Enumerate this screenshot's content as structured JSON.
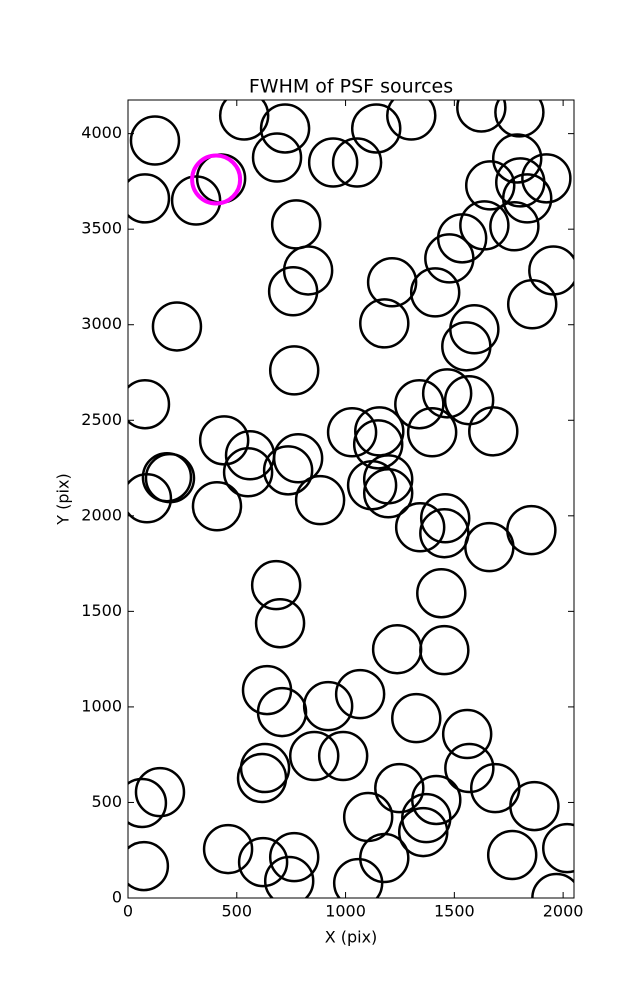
{
  "chart_data": {
    "type": "scatter",
    "title": "FWHM of PSF sources",
    "x_label": "X (pix)",
    "y_label": "Y (pix)",
    "xlim": [
      0,
      2050
    ],
    "ylim": [
      0,
      4176
    ],
    "xticks": [
      0,
      500,
      1000,
      1500,
      2000
    ],
    "yticks": [
      0,
      500,
      1000,
      1500,
      2000,
      2500,
      3000,
      3500,
      4000
    ],
    "series": [
      {
        "color": "#000000",
        "x": [
          124,
          78,
          313,
          428,
          534,
          722,
          685,
          943,
          1053,
          1141,
          1302,
          1624,
          1799,
          1789,
          1665,
          1803,
          1835,
          1923,
          1776,
          1638,
          1536,
          1477,
          1955,
          1412,
          1214,
          1178,
          1858,
          1592,
          1555,
          773,
          828,
          759,
          225,
          764,
          78,
          1339,
          1467,
          1568,
          1398,
          1679,
          1030,
          1155,
          1150,
          442,
          561,
          552,
          782,
          736,
          179,
          193,
          87,
          409,
          883,
          1196,
          1122,
          1196,
          1343,
          1458,
          1454,
          1661,
          1854,
          681,
          699,
          1440,
          1237,
          1454,
          639,
          708,
          920,
          1067,
          1325,
          1559,
          630,
          616,
          856,
          989,
          1569,
          1688,
          1247,
          1417,
          1371,
          1357,
          1104,
          1178,
          1058,
          1868,
          1766,
          2019,
          1969,
          147,
          64,
          73,
          460,
          621,
          741,
          764
        ],
        "values": [
          3964,
          3661,
          3650,
          3765,
          4095,
          4027,
          3875,
          3849,
          3849,
          4027,
          4095,
          4137,
          4111,
          3870,
          3729,
          3745,
          3661,
          3766,
          3515,
          3520,
          3452,
          3347,
          3284,
          3169,
          3222,
          3007,
          3107,
          2976,
          2887,
          3525,
          3284,
          3175,
          2991,
          2761,
          2584,
          2584,
          2641,
          2605,
          2437,
          2442,
          2437,
          2442,
          2374,
          2395,
          2317,
          2228,
          2301,
          2238,
          2202,
          2197,
          2092,
          2050,
          2082,
          2191,
          2160,
          2118,
          1940,
          1987,
          1909,
          1836,
          1925,
          1637,
          1438,
          1595,
          1302,
          1297,
          1088,
          973,
          1004,
          1067,
          941,
          858,
          680,
          628,
          743,
          743,
          680,
          575,
          575,
          513,
          418,
          345,
          424,
          209,
          78,
          481,
          225,
          261,
          0,
          554,
          497,
          167,
          256,
          188,
          89,
          214
        ]
      },
      {
        "color": "#ff00ff",
        "x": [
          405
        ],
        "values": [
          3760
        ]
      }
    ]
  }
}
